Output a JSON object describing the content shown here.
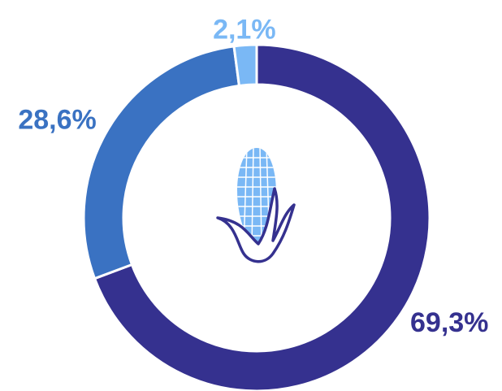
{
  "chart_data": {
    "type": "donut",
    "values": [
      69.3,
      28.6,
      2.1
    ],
    "value_labels": [
      "69,3%",
      "28,6%",
      "2,1%"
    ],
    "colors": [
      "#35318f",
      "#3a72c2",
      "#7ab8f5"
    ]
  }
}
